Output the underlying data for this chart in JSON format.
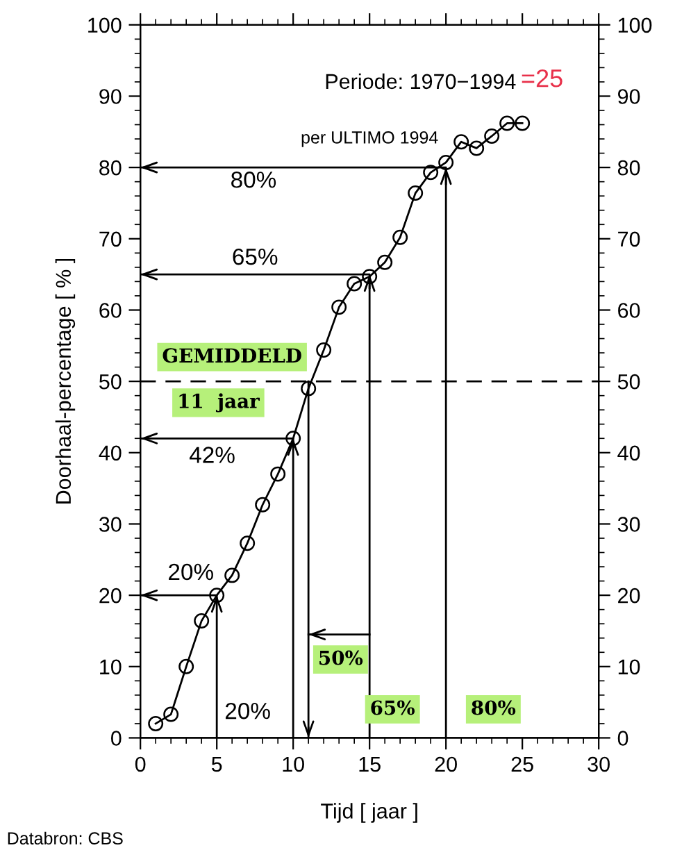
{
  "chart_data": {
    "type": "line",
    "xlabel": "Tijd [ jaar ]",
    "ylabel": "Doorhaal-percentage [ % ]",
    "xlim": [
      0,
      30
    ],
    "xticks": [
      0,
      5,
      10,
      15,
      20,
      25,
      30
    ],
    "ylim": [
      0,
      100
    ],
    "yticks": [
      0,
      10,
      20,
      30,
      40,
      50,
      60,
      70,
      80,
      90,
      100
    ],
    "y2lim": [
      0,
      100
    ],
    "y2ticks": [
      0,
      10,
      20,
      30,
      40,
      50,
      60,
      70,
      80,
      90,
      100
    ],
    "grid": false,
    "marker": "circle",
    "line_style": "solid",
    "series": [
      {
        "color": "#000000",
        "x": [
          1,
          2,
          3,
          4,
          5,
          6,
          7,
          8,
          9,
          10,
          11,
          12,
          13,
          14,
          15,
          16,
          17,
          18,
          19,
          20,
          21,
          22,
          23,
          24,
          25
        ],
        "values": [
          2,
          3.3,
          10,
          16.4,
          20,
          22.8,
          27.3,
          32.7,
          37,
          42,
          49,
          54.4,
          60.4,
          63.7,
          64.7,
          66.7,
          70.2,
          76.4,
          79.3,
          80.7,
          83.6,
          82.7,
          84.4,
          86.2,
          86.2
        ]
      },
      {
        "color": "#000000",
        "marker": "none",
        "x": [
          20,
          20,
          0
        ],
        "values": [
          0,
          80,
          80
        ]
      },
      {
        "color": "#000000",
        "marker": "none",
        "x": [
          15,
          15,
          0
        ],
        "values": [
          0,
          65,
          65
        ]
      },
      {
        "color": "#000000",
        "marker": "none",
        "x": [
          10,
          10,
          0
        ],
        "values": [
          0,
          42,
          42
        ]
      },
      {
        "color": "#000000",
        "marker": "none",
        "x": [
          5,
          5,
          0
        ],
        "values": [
          0,
          20,
          20
        ]
      },
      {
        "color": "#000000",
        "marker": "none",
        "x": [
          11,
          11
        ],
        "values": [
          50,
          0
        ]
      },
      {
        "color": "#000000",
        "marker": "none",
        "x": [
          15,
          11
        ],
        "values": [
          14.5,
          14.5
        ]
      }
    ],
    "ref_lines": [
      {
        "axis": "y",
        "value": 50,
        "label": null,
        "color": "#000000",
        "line_style": "dashed"
      }
    ],
    "annotations": [
      "Periode: 1970−1994",
      "per ULTIMO 1994",
      "=25",
      "Databron: CBS",
      "80%",
      "65%",
      "42%",
      "20%",
      {
        "text": "20%",
        "x": 5,
        "y": 3.5
      },
      "GEMIDDELD",
      "11  jaar",
      "50%",
      "65%",
      "80%"
    ]
  }
}
